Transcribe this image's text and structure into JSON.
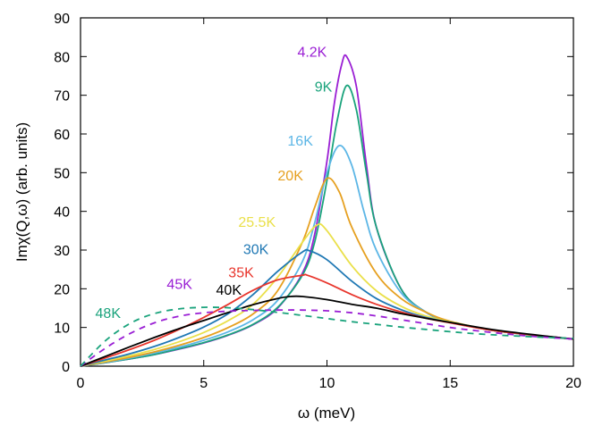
{
  "chart_data": {
    "type": "line",
    "title": "",
    "xlabel": "ω (meV)",
    "ylabel": "Imχ(Q,ω) (arb. units)",
    "xlim": [
      0,
      20
    ],
    "ylim": [
      0,
      90
    ],
    "xticks": [
      0,
      5,
      10,
      15,
      20
    ],
    "yticks": [
      0,
      10,
      20,
      30,
      40,
      50,
      60,
      70,
      80,
      90
    ],
    "grid": false,
    "legend": "inline labels",
    "series": [
      {
        "name": "4.2K",
        "color": "#9a1fd4",
        "dash": false,
        "label_pos": [
          8.8,
          80
        ],
        "x": [
          0,
          1,
          2,
          3,
          4,
          5,
          6,
          7,
          8,
          9,
          9.5,
          10,
          10.3,
          10.6,
          10.8,
          11.2,
          11.6,
          12,
          13,
          14,
          15,
          17,
          20
        ],
        "y": [
          0,
          0.9,
          1.9,
          3.0,
          4.4,
          6.0,
          8.0,
          10.7,
          15.0,
          24.0,
          34.0,
          53.0,
          68.0,
          78.0,
          80.0,
          72.0,
          52.0,
          36.0,
          20.0,
          14.0,
          11.5,
          9.0,
          7.0
        ]
      },
      {
        "name": "9K",
        "color": "#1aa37c",
        "dash": false,
        "label_pos": [
          9.5,
          71
        ],
        "x": [
          0,
          1,
          2,
          3,
          4,
          5,
          6,
          7,
          8,
          9,
          9.5,
          10,
          10.4,
          10.8,
          11.2,
          11.6,
          12,
          13,
          14,
          15,
          17,
          20
        ],
        "y": [
          0,
          0.9,
          1.9,
          3.0,
          4.5,
          6.1,
          8.1,
          10.8,
          15.2,
          23.5,
          32.0,
          48.0,
          63.0,
          72.5,
          66.0,
          50.0,
          36.0,
          20.0,
          14.0,
          11.5,
          9.0,
          7.0
        ]
      },
      {
        "name": "16K",
        "color": "#5cb6e6",
        "dash": false,
        "label_pos": [
          8.4,
          57
        ],
        "x": [
          0,
          1,
          2,
          3,
          4,
          5,
          6,
          7,
          8,
          9,
          9.5,
          10,
          10.5,
          11,
          11.5,
          12,
          13,
          14,
          15,
          17,
          20
        ],
        "y": [
          0,
          1.0,
          2.1,
          3.4,
          4.9,
          6.7,
          8.9,
          12.0,
          17.0,
          27.0,
          37.0,
          50.0,
          57.0,
          52.0,
          40.0,
          30.0,
          19.0,
          14.0,
          11.5,
          9.0,
          7.0
        ]
      },
      {
        "name": "20K",
        "color": "#e6a020",
        "dash": false,
        "label_pos": [
          8.0,
          48
        ],
        "x": [
          0,
          1,
          2,
          3,
          4,
          5,
          6,
          7,
          8,
          9,
          9.5,
          10,
          10.5,
          11,
          12,
          13,
          14,
          15,
          17,
          20
        ],
        "y": [
          0,
          1.1,
          2.3,
          3.7,
          5.4,
          7.4,
          10.0,
          13.5,
          19.5,
          32.0,
          41.0,
          48.5,
          45.0,
          36.0,
          24.0,
          17.5,
          14.0,
          11.6,
          9.0,
          7.0
        ]
      },
      {
        "name": "25.5K",
        "color": "#eae04a",
        "dash": false,
        "label_pos": [
          6.4,
          36
        ],
        "x": [
          0,
          1,
          2,
          3,
          4,
          5,
          6,
          7,
          8,
          9,
          9.6,
          10,
          11,
          12,
          13,
          14,
          15,
          17,
          20
        ],
        "y": [
          0,
          1.3,
          2.7,
          4.3,
          6.3,
          8.7,
          11.8,
          16.0,
          23.0,
          32.0,
          36.5,
          35.0,
          26.0,
          19.5,
          15.5,
          13.0,
          11.5,
          9.0,
          7.0
        ]
      },
      {
        "name": "30K",
        "color": "#1f78b4",
        "dash": false,
        "label_pos": [
          6.6,
          29
        ],
        "x": [
          0,
          1,
          2,
          3,
          4,
          5,
          6,
          7,
          8,
          9,
          9.3,
          10,
          11,
          12,
          13,
          14,
          15,
          17,
          20
        ],
        "y": [
          0,
          1.6,
          3.2,
          5.1,
          7.4,
          10.1,
          13.6,
          18.5,
          24.5,
          29.5,
          29.8,
          27.5,
          22.0,
          17.5,
          14.6,
          12.6,
          11.3,
          9.0,
          7.0
        ]
      },
      {
        "name": "35K",
        "color": "#e8352c",
        "dash": false,
        "label_pos": [
          6.0,
          23
        ],
        "x": [
          0,
          1,
          2,
          3,
          4,
          5,
          6,
          7,
          8,
          9,
          9.2,
          10,
          11,
          12,
          13,
          14,
          15,
          17,
          20
        ],
        "y": [
          0,
          2.1,
          4.3,
          6.7,
          9.5,
          12.6,
          16.0,
          19.6,
          22.3,
          23.5,
          23.5,
          21.5,
          18.5,
          16.0,
          14.0,
          12.4,
          11.2,
          9.0,
          7.0
        ]
      },
      {
        "name": "40K",
        "color": "#000000",
        "dash": false,
        "label_pos": [
          5.5,
          18.5
        ],
        "x": [
          0,
          1,
          2,
          3,
          4,
          5,
          6,
          7,
          8,
          8.5,
          9,
          10,
          11,
          12,
          13,
          14,
          15,
          17,
          20
        ],
        "y": [
          0,
          2.5,
          5.0,
          7.4,
          9.7,
          11.8,
          13.9,
          15.9,
          17.5,
          18.0,
          18.0,
          17.2,
          16.0,
          15.0,
          13.6,
          12.4,
          11.3,
          9.2,
          7.0
        ]
      },
      {
        "name": "45K",
        "color": "#9a1fd4",
        "dash": true,
        "label_pos": [
          3.5,
          20
        ],
        "x": [
          0,
          1,
          2,
          3,
          4,
          5,
          6,
          7,
          8,
          9,
          10,
          11,
          12,
          13,
          14,
          15,
          16,
          17,
          18,
          19,
          20
        ],
        "y": [
          0,
          4.6,
          8.4,
          11.2,
          12.9,
          13.8,
          14.2,
          14.4,
          14.5,
          14.5,
          14.3,
          13.8,
          13.0,
          12.0,
          11.0,
          10.0,
          9.2,
          8.5,
          7.9,
          7.4,
          7.0
        ]
      },
      {
        "name": "48K",
        "color": "#1aa37c",
        "dash": true,
        "label_pos": [
          0.6,
          12.5
        ],
        "x": [
          0,
          1,
          2,
          3,
          4,
          5,
          6,
          7,
          8,
          9,
          10,
          11,
          12,
          13,
          14,
          15,
          16,
          17,
          18,
          19,
          20
        ],
        "y": [
          0,
          6.5,
          11.0,
          13.6,
          14.8,
          15.2,
          15.1,
          14.6,
          13.9,
          13.1,
          12.3,
          11.5,
          10.8,
          10.1,
          9.5,
          8.9,
          8.4,
          8.0,
          7.7,
          7.4,
          7.2
        ]
      }
    ]
  }
}
